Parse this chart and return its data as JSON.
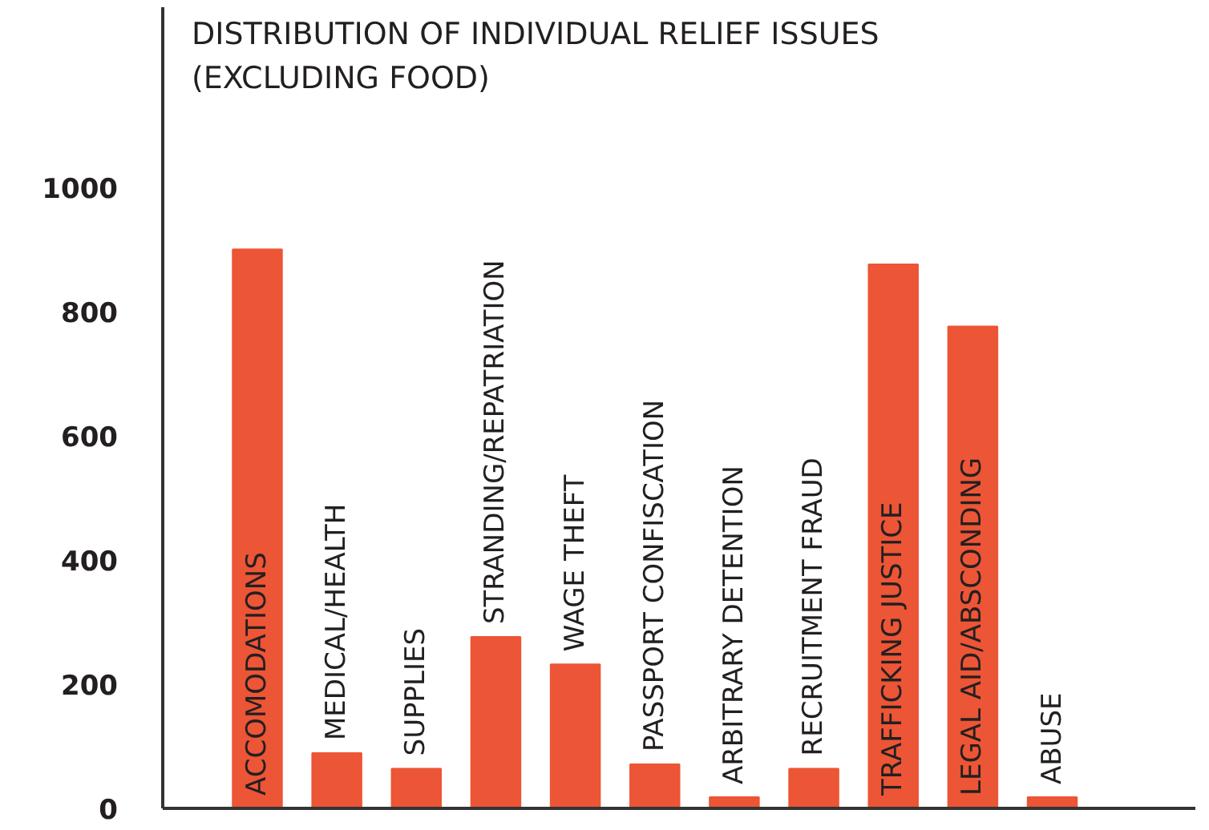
{
  "chart_data": {
    "type": "bar",
    "title": "DISTRIBUTION OF INDIVIDUAL RELIEF ISSUES\n(EXCLUDING FOOD)",
    "categories": [
      "ACCOMODATIONS",
      "MEDICAL/HEALTH",
      "SUPPLIES",
      "STRANDING/REPATRIATION",
      "WAGE THEFT",
      "PASSPORT CONFISCATION",
      "ARBITRARY DETENTION",
      "RECRUITMENT FRAUD",
      "TRAFFICKING JUSTICE",
      "LEGAL AID/ABSCONDING",
      "ABUSE"
    ],
    "values": [
      900,
      89,
      64,
      276,
      232,
      71,
      18,
      64,
      876,
      776,
      18
    ],
    "color": "#ec5535",
    "ylim": [
      0,
      1290
    ],
    "yticks": [
      0,
      200,
      400,
      600,
      800,
      1000
    ],
    "tick_labels": "y"
  }
}
